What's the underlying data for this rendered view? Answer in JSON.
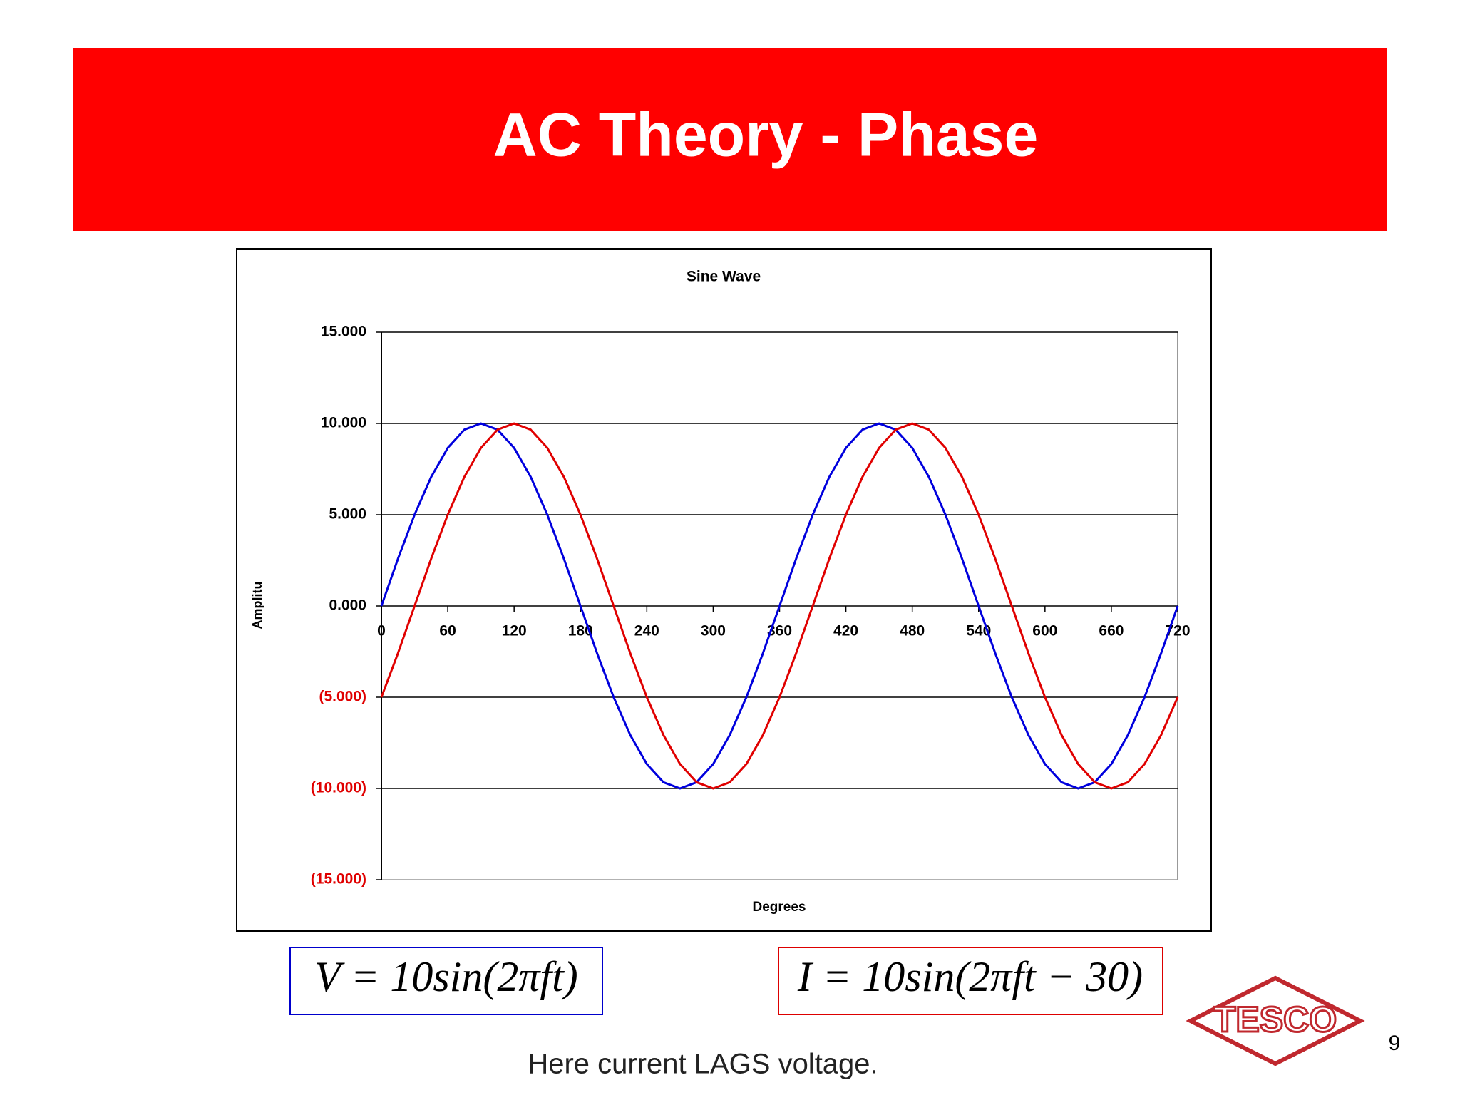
{
  "header": {
    "title": "AC Theory - Phase"
  },
  "chart_data": {
    "type": "line",
    "title": "Sine Wave",
    "x_label": "Degrees",
    "y_label": "Amplitu",
    "x": [
      0,
      15,
      30,
      45,
      60,
      75,
      90,
      105,
      120,
      135,
      150,
      165,
      180,
      195,
      210,
      225,
      240,
      255,
      270,
      285,
      300,
      315,
      330,
      345,
      360,
      375,
      390,
      405,
      420,
      435,
      450,
      465,
      480,
      495,
      510,
      525,
      540,
      555,
      570,
      585,
      600,
      615,
      630,
      645,
      660,
      675,
      690,
      705,
      720
    ],
    "series": [
      {
        "name": "V",
        "color": "#0000dd",
        "values": [
          0,
          2.59,
          5,
          7.07,
          8.66,
          9.66,
          10,
          9.66,
          8.66,
          7.07,
          5,
          2.59,
          0,
          -2.59,
          -5,
          -7.07,
          -8.66,
          -9.66,
          -10,
          -9.66,
          -8.66,
          -7.07,
          -5,
          -2.59,
          0,
          2.59,
          5,
          7.07,
          8.66,
          9.66,
          10,
          9.66,
          8.66,
          7.07,
          5,
          2.59,
          0,
          -2.59,
          -5,
          -7.07,
          -8.66,
          -9.66,
          -10,
          -9.66,
          -8.66,
          -7.07,
          -5,
          -2.59,
          0
        ]
      },
      {
        "name": "I",
        "color": "#e00000",
        "values": [
          -5,
          -2.59,
          0,
          2.59,
          5,
          7.07,
          8.66,
          9.66,
          10,
          9.66,
          8.66,
          7.07,
          5,
          2.59,
          0,
          -2.59,
          -5,
          -7.07,
          -8.66,
          -9.66,
          -10,
          -9.66,
          -8.66,
          -7.07,
          -5,
          -2.59,
          0,
          2.59,
          5,
          7.07,
          8.66,
          9.66,
          10,
          9.66,
          8.66,
          7.07,
          5,
          2.59,
          0,
          -2.59,
          -5,
          -7.07,
          -8.66,
          -9.66,
          -10,
          -9.66,
          -8.66,
          -7.07,
          -5
        ]
      }
    ],
    "xlim": [
      0,
      720
    ],
    "xticks": [
      0,
      60,
      120,
      180,
      240,
      300,
      360,
      420,
      480,
      540,
      600,
      660,
      720
    ],
    "ylim": [
      -15,
      15
    ],
    "yticks": [
      {
        "value": 15,
        "label": "15.000"
      },
      {
        "value": 10,
        "label": "10.000"
      },
      {
        "value": 5,
        "label": "5.000"
      },
      {
        "value": 0,
        "label": "0.000"
      },
      {
        "value": -5,
        "label": "(5.000)"
      },
      {
        "value": -10,
        "label": "(10.000)"
      },
      {
        "value": -15,
        "label": "(15.000)"
      }
    ],
    "negative_tick_color": "#e00000",
    "grid": true
  },
  "equations": [
    "V = 10sin(2πft)",
    "I = 10sin(2πft − 30)"
  ],
  "caption": "Here current LAGS voltage.",
  "logo": "TESCO",
  "page_number": "9"
}
